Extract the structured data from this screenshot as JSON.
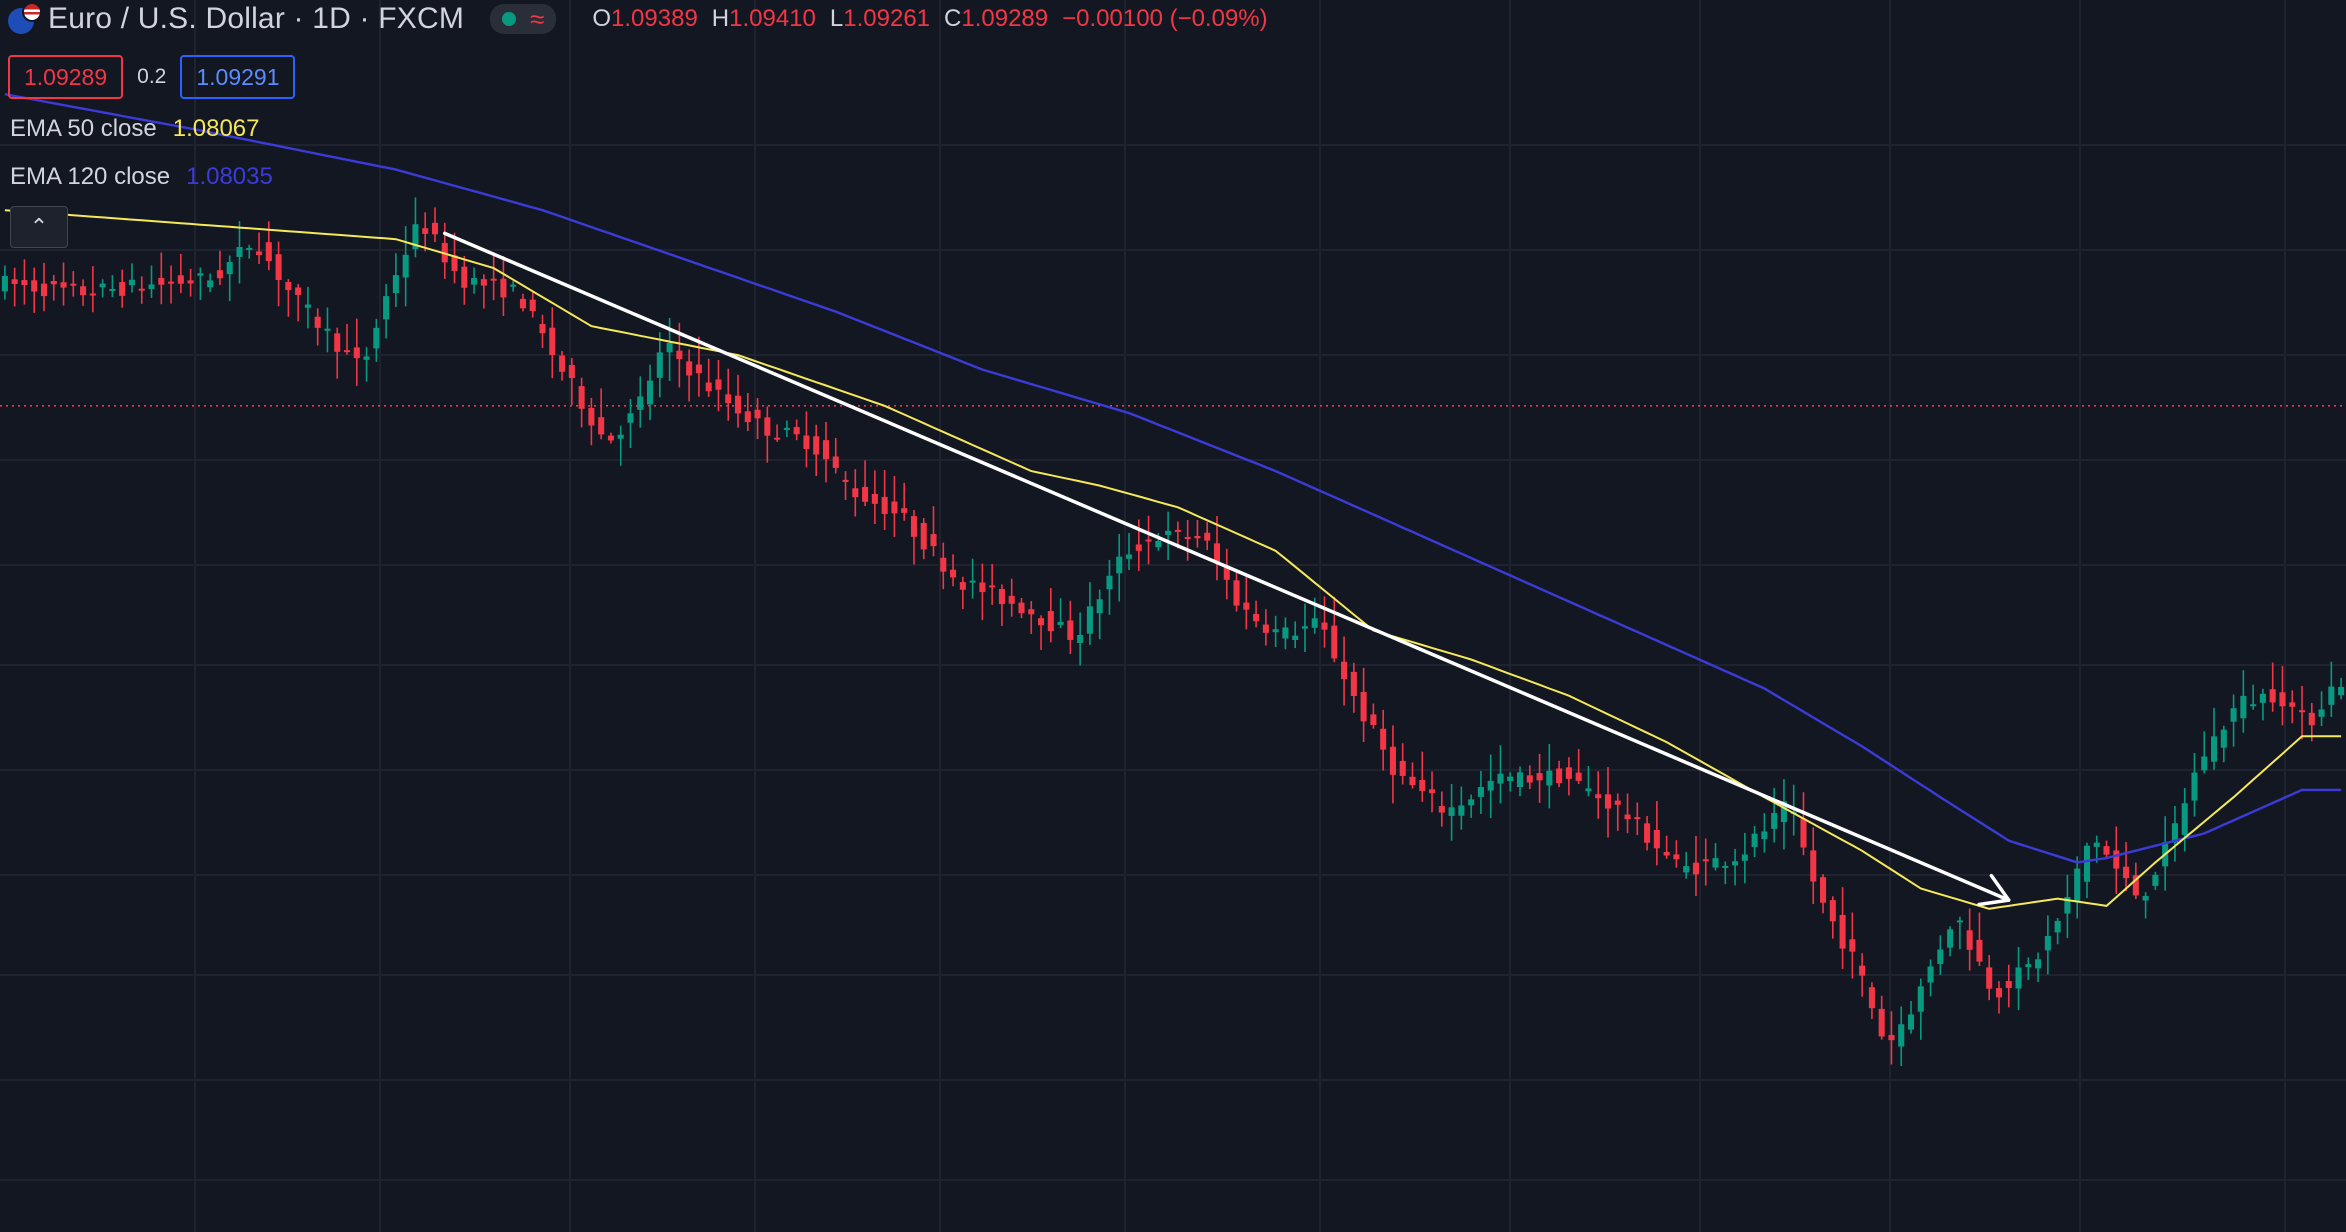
{
  "header": {
    "symbol_title": "Euro / U.S. Dollar · 1D · FXCM",
    "status_icon": "market-open-dot-icon",
    "delay_icon": "wave-icon",
    "ohlc": {
      "open_label": "O",
      "open": "1.09389",
      "high_label": "H",
      "high": "1.09410",
      "low_label": "L",
      "low": "1.09261",
      "close_label": "C",
      "close": "1.09289",
      "change": "−0.00100 (−0.09%)"
    }
  },
  "trade": {
    "sell_price": "1.09289",
    "spread": "0.2",
    "buy_price": "1.09291"
  },
  "indicators": [
    {
      "name": "EMA 50 close",
      "value": "1.08067",
      "color": "#f5e85a"
    },
    {
      "name": "EMA 120 close",
      "value": "1.08035",
      "color": "#3b3bd8"
    }
  ],
  "legend_toggle": {
    "icon": "chevron-up-icon",
    "glyph": "⌃"
  },
  "colors": {
    "background": "#131722",
    "grid": "#1f2330",
    "up": "#089981",
    "down": "#f23645",
    "ema50": "#f5e85a",
    "ema120": "#3b3bd8",
    "trendline": "#ffffff",
    "price_line": "#f23645"
  },
  "chart_data": {
    "type": "candlestick",
    "ylim": [
      1.035,
      1.12
    ],
    "price_line": 1.092,
    "trendline": {
      "from": {
        "x": 45,
        "y": 1.1039
      },
      "to": {
        "x": 205,
        "y": 1.0579
      },
      "arrow": true
    },
    "path": [
      [
        0,
        1.1005
      ],
      [
        8,
        1.0998
      ],
      [
        15,
        1.1003
      ],
      [
        22,
        1.1008
      ],
      [
        26,
        1.1035
      ],
      [
        30,
        1.0995
      ],
      [
        37,
        1.0945
      ],
      [
        40,
        1.1005
      ],
      [
        43,
        1.1048
      ],
      [
        47,
        1.1008
      ],
      [
        53,
        1.0998
      ],
      [
        57,
        1.095
      ],
      [
        62,
        1.0895
      ],
      [
        65,
        1.0915
      ],
      [
        68,
        1.0962
      ],
      [
        73,
        1.093
      ],
      [
        78,
        1.0905
      ],
      [
        83,
        1.0895
      ],
      [
        87,
        1.0862
      ],
      [
        92,
        1.0845
      ],
      [
        98,
        1.08
      ],
      [
        105,
        1.078
      ],
      [
        110,
        1.076
      ],
      [
        115,
        1.0818
      ],
      [
        118,
        1.083
      ],
      [
        123,
        1.083
      ],
      [
        127,
        1.078
      ],
      [
        131,
        1.0762
      ],
      [
        135,
        1.077
      ],
      [
        139,
        1.0712
      ],
      [
        143,
        1.0665
      ],
      [
        148,
        1.064
      ],
      [
        153,
        1.0662
      ],
      [
        160,
        1.0665
      ],
      [
        166,
        1.064
      ],
      [
        172,
        1.06
      ],
      [
        178,
        1.061
      ],
      [
        183,
        1.0645
      ],
      [
        186,
        1.0582
      ],
      [
        190,
        1.0533
      ],
      [
        193,
        1.0478
      ],
      [
        196,
        1.051
      ],
      [
        200,
        1.057
      ],
      [
        204,
        1.0515
      ],
      [
        208,
        1.0535
      ],
      [
        211,
        1.057
      ],
      [
        214,
        1.0625
      ],
      [
        217,
        1.0595
      ],
      [
        219,
        1.058
      ],
      [
        222,
        1.062
      ],
      [
        225,
        1.0675
      ],
      [
        229,
        1.0715
      ],
      [
        233,
        1.0722
      ],
      [
        236,
        1.07
      ],
      [
        239,
        1.073
      ]
    ],
    "ema50": [
      [
        0,
        1.1055
      ],
      [
        20,
        1.1045
      ],
      [
        40,
        1.1035
      ],
      [
        50,
        1.1015
      ],
      [
        60,
        1.0975
      ],
      [
        75,
        1.0955
      ],
      [
        90,
        1.092
      ],
      [
        105,
        1.0875
      ],
      [
        112,
        1.0865
      ],
      [
        120,
        1.085
      ],
      [
        130,
        1.082
      ],
      [
        140,
        1.0765
      ],
      [
        150,
        1.0745
      ],
      [
        160,
        1.072
      ],
      [
        170,
        1.0688
      ],
      [
        180,
        1.065
      ],
      [
        190,
        1.0613
      ],
      [
        196,
        1.0587
      ],
      [
        203,
        1.0573
      ],
      [
        210,
        1.058
      ],
      [
        215,
        1.0575
      ],
      [
        220,
        1.0605
      ],
      [
        228,
        1.065
      ],
      [
        235,
        1.0692
      ]
    ],
    "ema120": [
      [
        0,
        1.1135
      ],
      [
        20,
        1.111
      ],
      [
        40,
        1.1083
      ],
      [
        55,
        1.1055
      ],
      [
        70,
        1.102
      ],
      [
        85,
        1.0985
      ],
      [
        100,
        1.0945
      ],
      [
        115,
        1.0915
      ],
      [
        130,
        1.0875
      ],
      [
        140,
        1.0845
      ],
      [
        150,
        1.0815
      ],
      [
        160,
        1.0785
      ],
      [
        170,
        1.0755
      ],
      [
        180,
        1.0725
      ],
      [
        190,
        1.0685
      ],
      [
        198,
        1.065
      ],
      [
        205,
        1.062
      ],
      [
        212,
        1.0605
      ],
      [
        215,
        1.0608
      ],
      [
        225,
        1.0625
      ],
      [
        235,
        1.0655
      ]
    ]
  }
}
